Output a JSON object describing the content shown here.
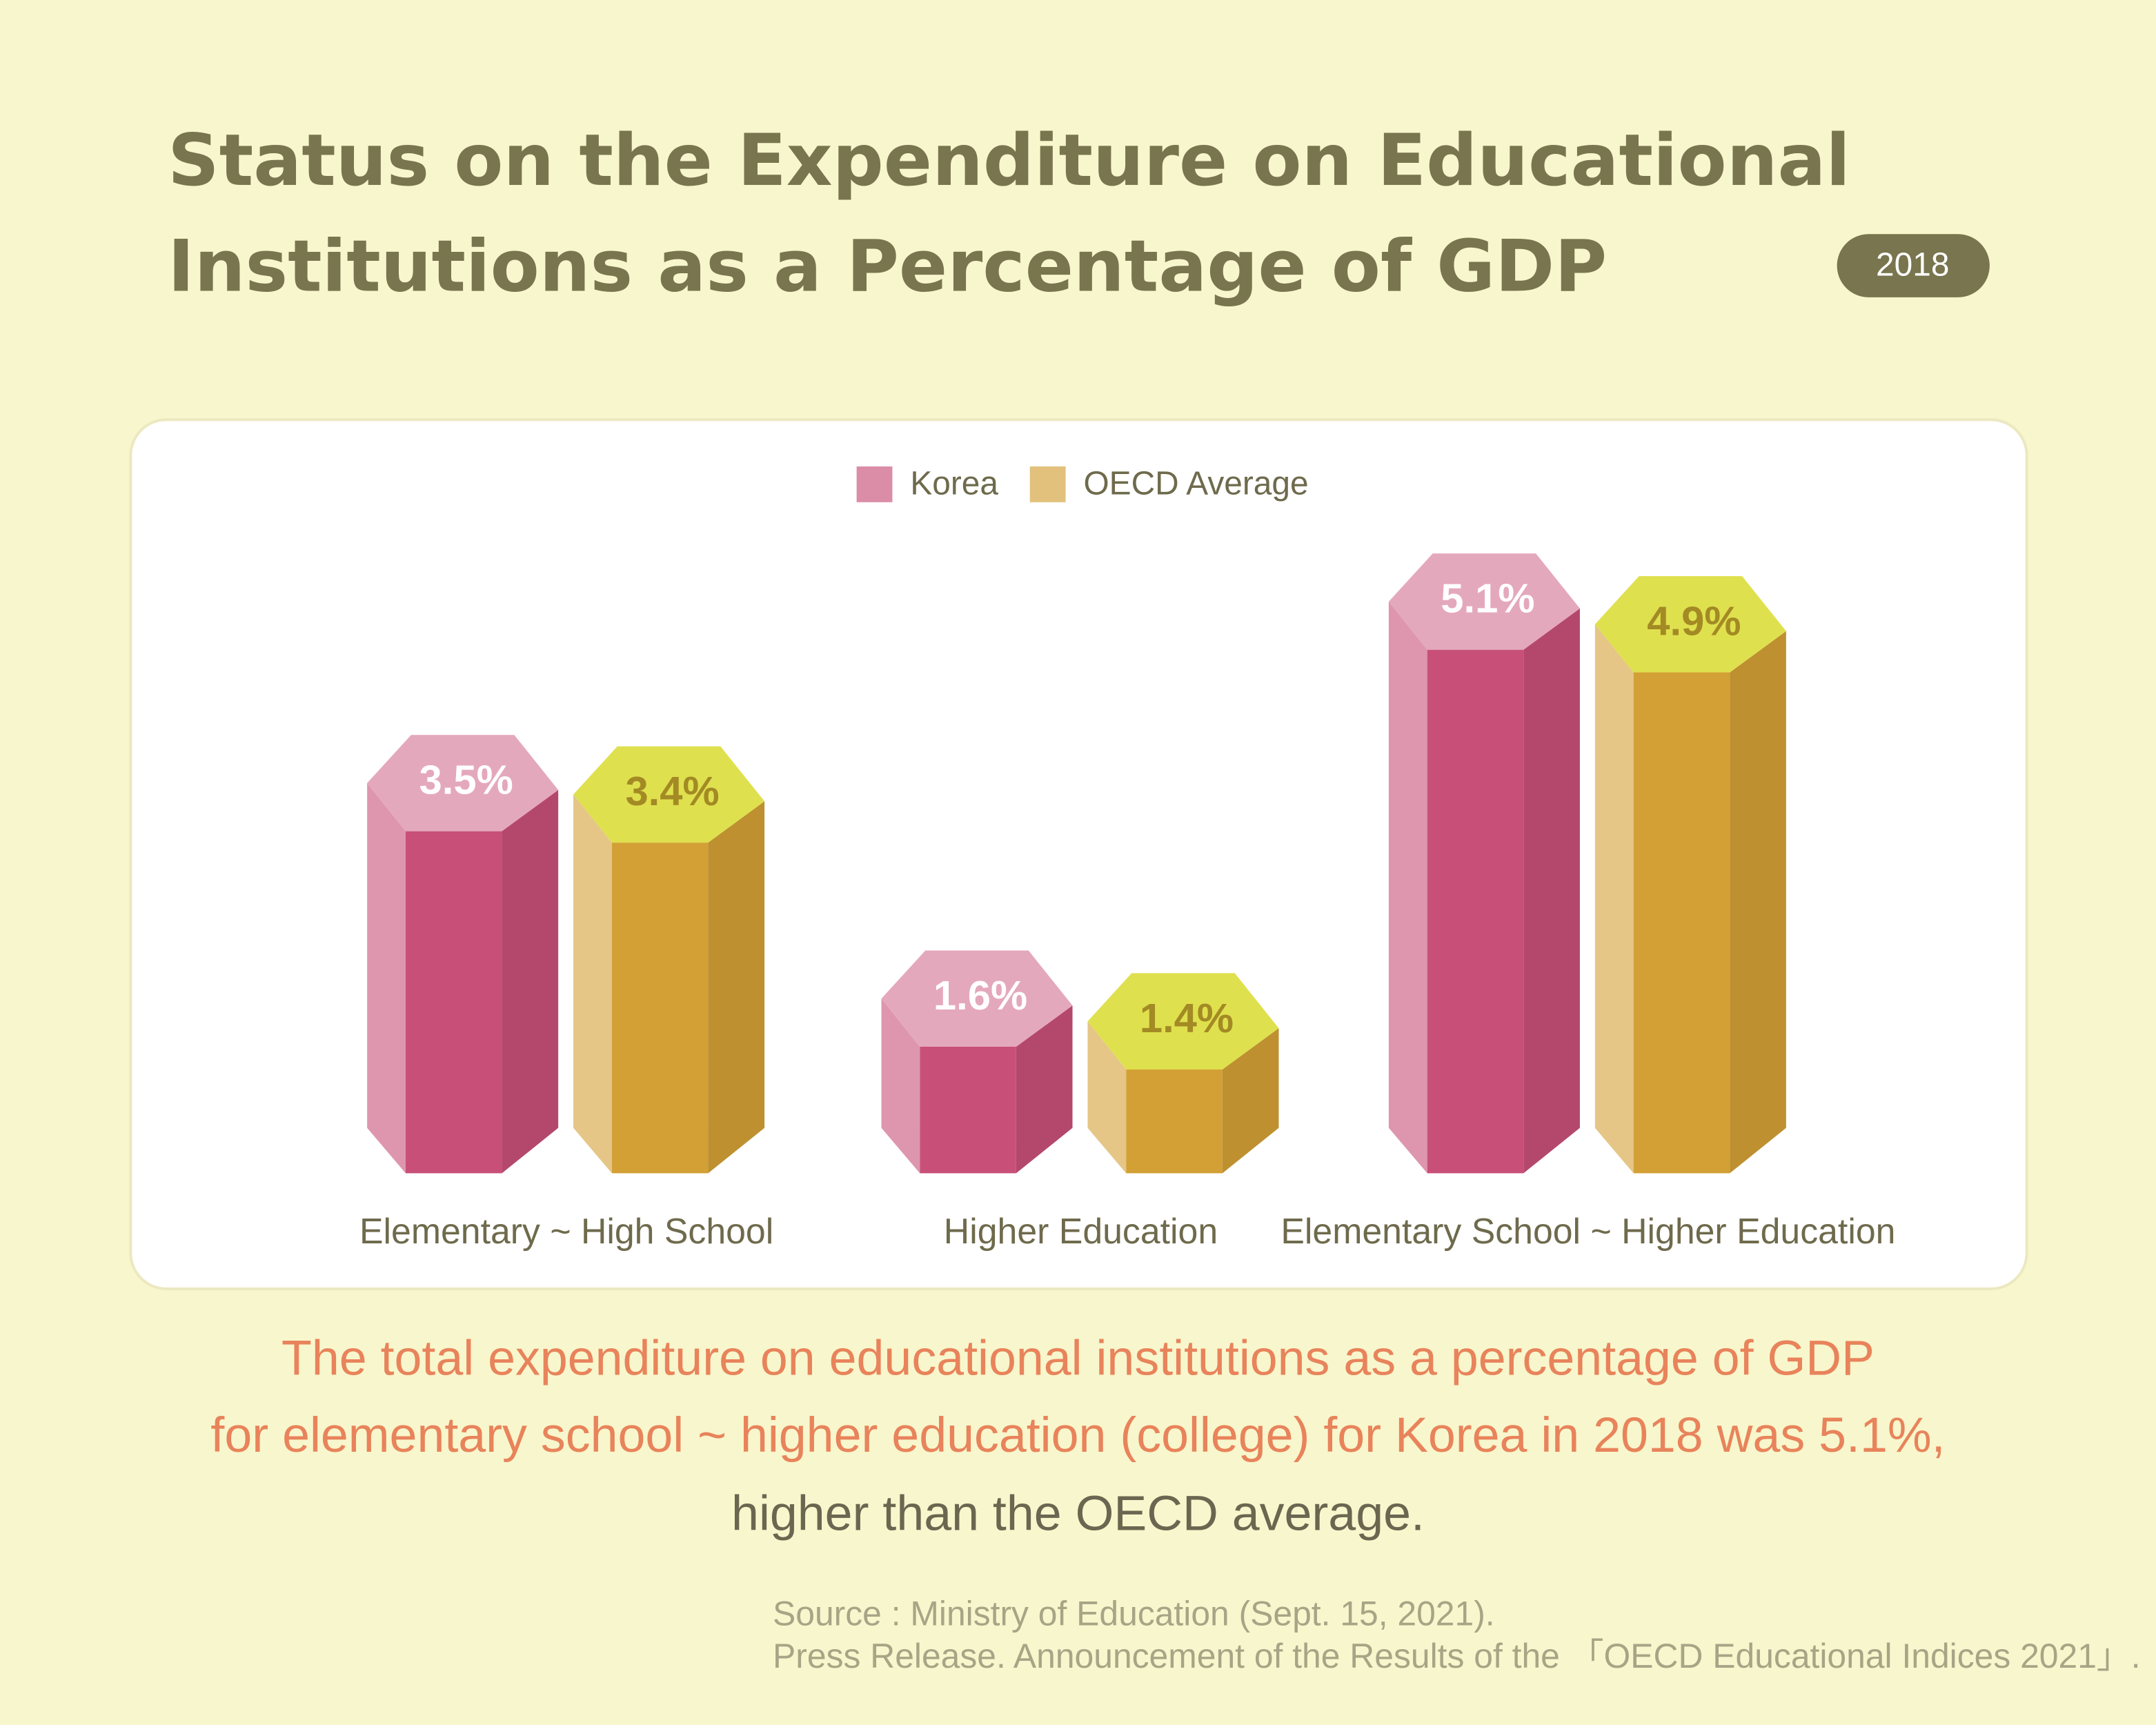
{
  "chart_data": {
    "type": "bar",
    "title": [
      "Status on the Expenditure on Educational",
      "Institutions as a Percentage of GDP"
    ],
    "badge": "2018",
    "categories": [
      "Elementary ~ High School",
      "Higher Education",
      "Elementary School ~ Higher Education"
    ],
    "series": [
      {
        "name": "Korea",
        "color": "#c85078",
        "values": [
          3.5,
          1.6,
          5.1
        ],
        "value_labels": [
          "3.5%",
          "1.6%",
          "5.1%"
        ]
      },
      {
        "name": "OECD Average",
        "color": "#d3a035",
        "values": [
          3.4,
          1.4,
          4.9
        ],
        "value_labels": [
          "3.4%",
          "1.4%",
          "4.9%"
        ]
      }
    ],
    "description": [
      "The total expenditure on educational institutions as a percentage of GDP",
      "for elementary school ~ higher education (college) for Korea in 2018 was 5.1%,",
      "higher than the OECD average."
    ],
    "source": [
      "Source : Ministry of Education (Sept. 15, 2021).",
      "Press Release. Announcement of the Results of the 「OECD Educational Indices 2021」."
    ]
  }
}
